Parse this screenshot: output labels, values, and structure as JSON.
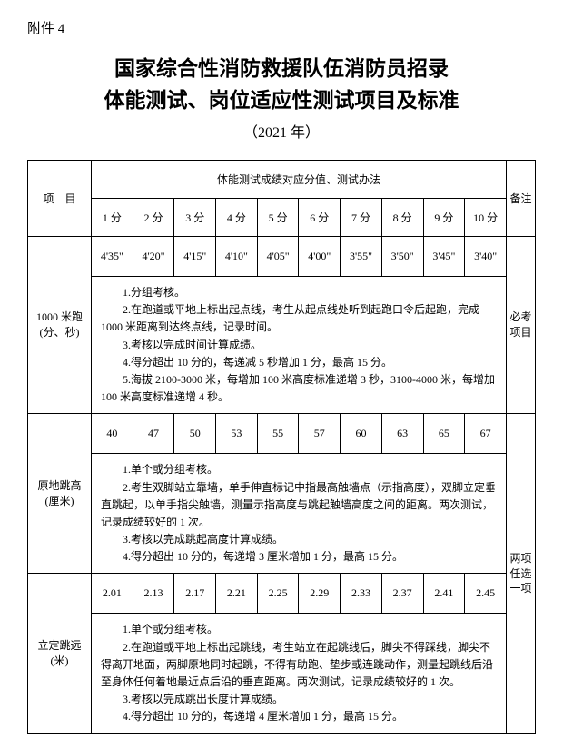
{
  "attachment": "附件 4",
  "title": {
    "line1": "国家综合性消防救援队伍消防员招录",
    "line2": "体能测试、岗位适应性测试项目及标准",
    "year": "（2021 年）"
  },
  "table": {
    "header": {
      "project": "项　目",
      "score_title": "体能测试成绩对应分值、测试办法",
      "remark": "备注",
      "scores": [
        "1 分",
        "2 分",
        "3 分",
        "4 分",
        "5 分",
        "6 分",
        "7 分",
        "8 分",
        "9 分",
        "10 分"
      ]
    },
    "row1": {
      "project": "1000 米跑\n(分、秒)",
      "values": [
        "4'35\"",
        "4'20\"",
        "4'15\"",
        "4'10\"",
        "4'05\"",
        "4'00\"",
        "3'55\"",
        "3'50\"",
        "3'45\"",
        "3'40\""
      ],
      "remark": "必考\n项目",
      "desc": {
        "p1": "1.分组考核。",
        "p2": "2.在跑道或平地上标出起点线，考生从起点线处听到起跑口令后起跑，完成 1000 米距离到达终点线，记录时间。",
        "p3": "3.考核以完成时间计算成绩。",
        "p4": "4.得分超出 10 分的，每递减 5 秒增加 1 分，最高 15 分。",
        "p5": "5.海拔 2100-3000 米，每增加 100 米高度标准递增 3 秒，3100-4000 米，每增加 100 米高度标准递增 4 秒。"
      }
    },
    "row2": {
      "project": "原地跳高\n(厘米)",
      "values": [
        "40",
        "47",
        "50",
        "53",
        "55",
        "57",
        "60",
        "63",
        "65",
        "67"
      ],
      "remark": "两项\n任选\n一项",
      "desc": {
        "p1": "1.单个或分组考核。",
        "p2": "2.考生双脚站立靠墙，单手伸直标记中指最高触墙点（示指高度），双脚立定垂直跳起，以单手指尖触墙，测量示指高度与跳起触墙高度之间的距离。两次测试，记录成绩较好的 1 次。",
        "p3": "3.考核以完成跳起高度计算成绩。",
        "p4": "4.得分超出 10 分的，每递增 3 厘米增加 1 分，最高 15 分。"
      }
    },
    "row3": {
      "project": "立定跳远\n(米)",
      "values": [
        "2.01",
        "2.13",
        "2.17",
        "2.21",
        "2.25",
        "2.29",
        "2.33",
        "2.37",
        "2.41",
        "2.45"
      ],
      "desc": {
        "p1": "1.单个或分组考核。",
        "p2": "2.在跑道或平地上标出起跳线，考生站立在起跳线后，脚尖不得踩线，脚尖不得离开地面，两脚原地同时起跳，不得有助跑、垫步或连跳动作，测量起跳线后沿至身体任何着地最近点后沿的垂直距离。两次测试，记录成绩较好的 1 次。",
        "p3": "3.考核以完成跳出长度计算成绩。",
        "p4": "4.得分超出 10 分的，每递增 4 厘米增加 1 分，最高 15 分。"
      }
    }
  }
}
